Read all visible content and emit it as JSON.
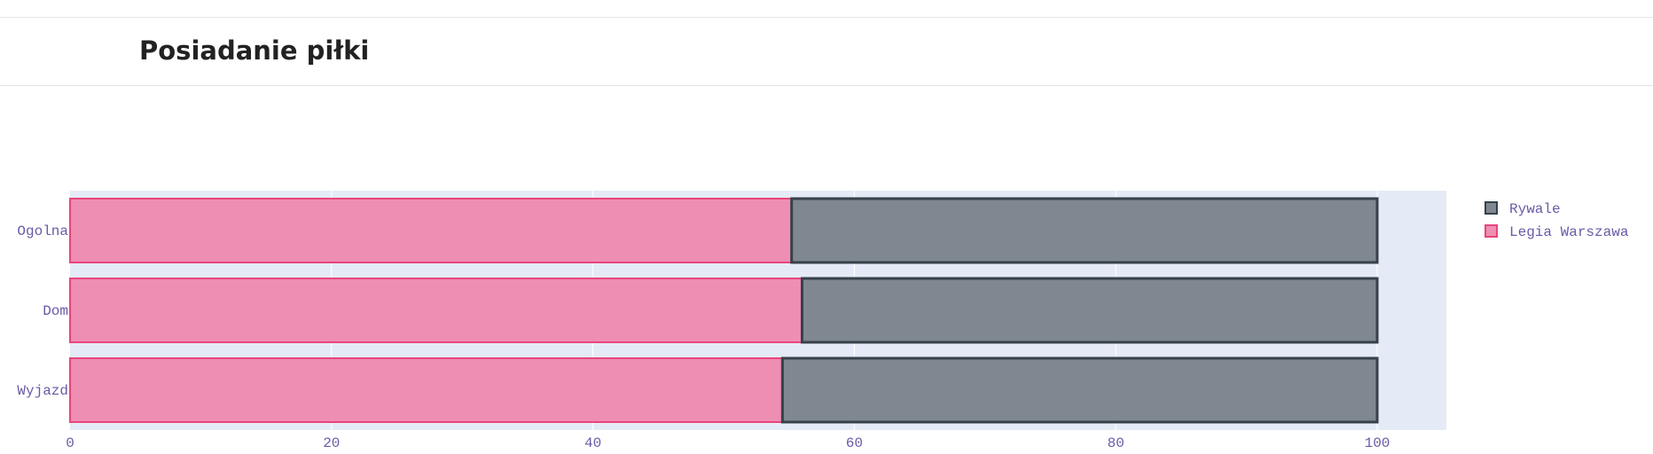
{
  "header": {
    "title": "Posiadanie piłki"
  },
  "chart_data": {
    "type": "bar",
    "orientation": "horizontal",
    "stacked": true,
    "categories": [
      "Ogolna",
      "Dom",
      "Wyjazd"
    ],
    "series": [
      {
        "name": "Legia Warszawa",
        "values": [
          55.2,
          56.0,
          54.5
        ],
        "color": "#ee8eb3",
        "border": "#e8457c"
      },
      {
        "name": "Rywale",
        "values": [
          44.8,
          44.0,
          45.5
        ],
        "color": "#7f8790",
        "border": "#36414a"
      }
    ],
    "xlim": [
      0,
      105
    ],
    "xticks": [
      0,
      20,
      40,
      60,
      80,
      100
    ],
    "grid": true,
    "legend_position": "top-right",
    "legend_order": [
      "Rywale",
      "Legia Warszawa"
    ],
    "plot_background": "#e5ebf6"
  }
}
